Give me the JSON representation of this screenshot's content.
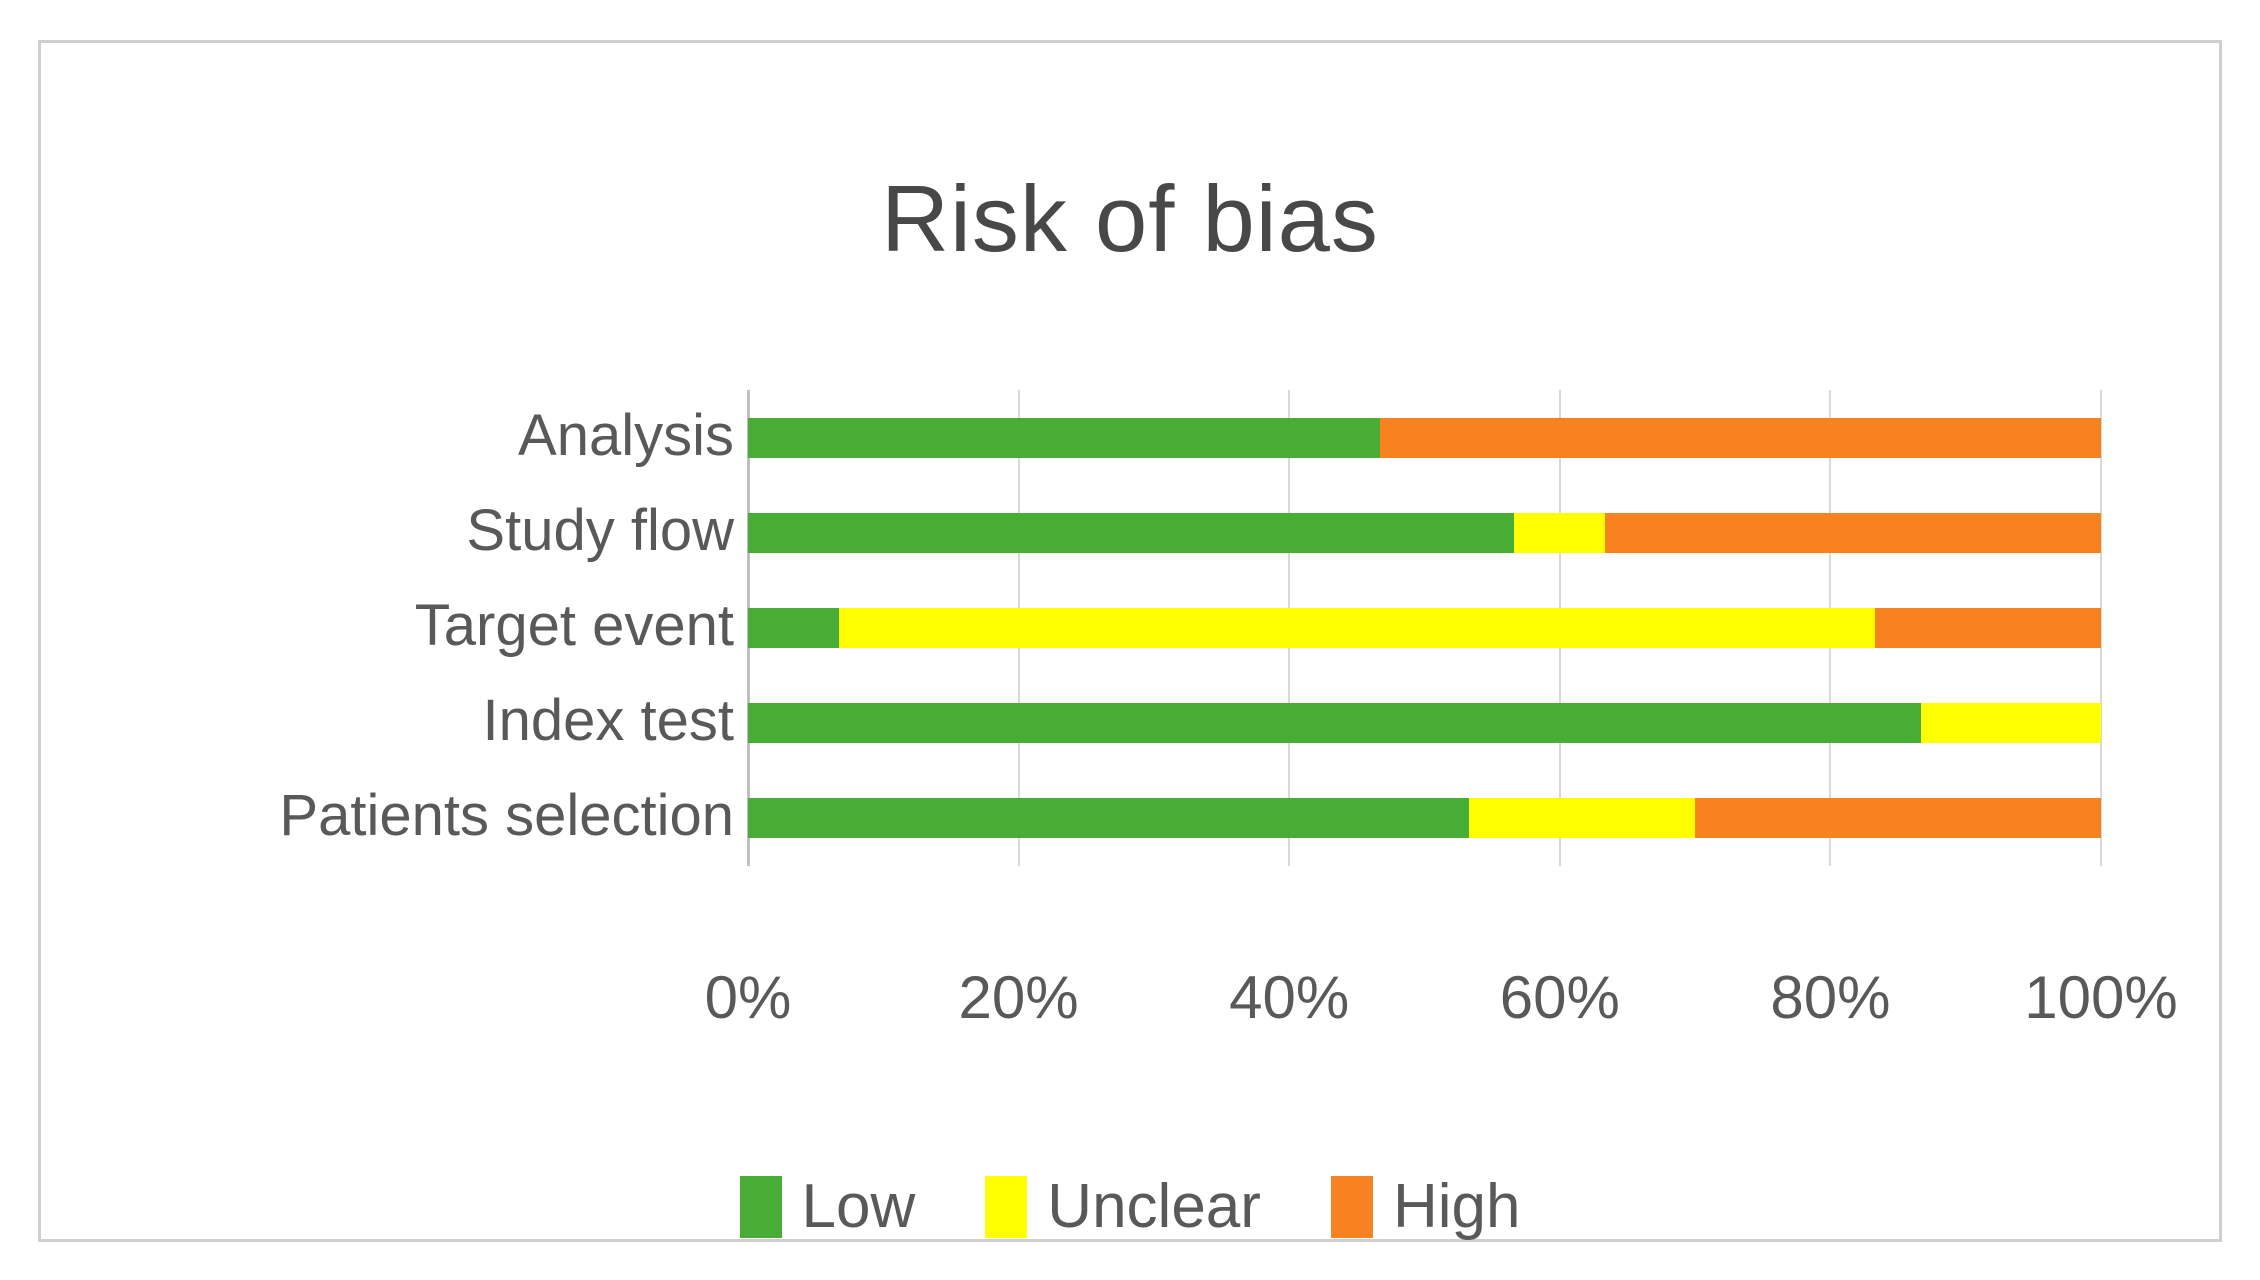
{
  "figure": {
    "title": "Risk of bias"
  },
  "colors": {
    "low": "#47ad34",
    "unclear": "#ffff00",
    "high": "#f88120",
    "grid": "#d9d9d9",
    "axis": "#bfbfbf",
    "label_text": "#595959",
    "title_text": "#484848",
    "frame_border": "#cfcfcf",
    "background": "#ffffff"
  },
  "chart_data": {
    "type": "bar",
    "orientation": "horizontal",
    "stacked": true,
    "title": "Risk of bias",
    "categories": [
      "Analysis",
      "Study flow",
      "Target event",
      "Index test",
      "Patients selection"
    ],
    "series": [
      {
        "name": "Low",
        "color_key": "low",
        "values": [
          46.7,
          56.7,
          6.7,
          86.7,
          53.3
        ]
      },
      {
        "name": "Unclear",
        "color_key": "unclear",
        "values": [
          0.0,
          6.7,
          76.7,
          13.3,
          16.7
        ]
      },
      {
        "name": "High",
        "color_key": "high",
        "values": [
          53.3,
          36.7,
          16.7,
          0.0,
          30.0
        ]
      }
    ],
    "xlabel": "",
    "ylabel": "",
    "xlim": [
      0,
      100
    ],
    "x_ticks": [
      "0%",
      "20%",
      "40%",
      "60%",
      "80%",
      "100%"
    ],
    "grid": true,
    "legend": [
      "Low",
      "Unclear",
      "High"
    ],
    "legend_position": "bottom"
  }
}
